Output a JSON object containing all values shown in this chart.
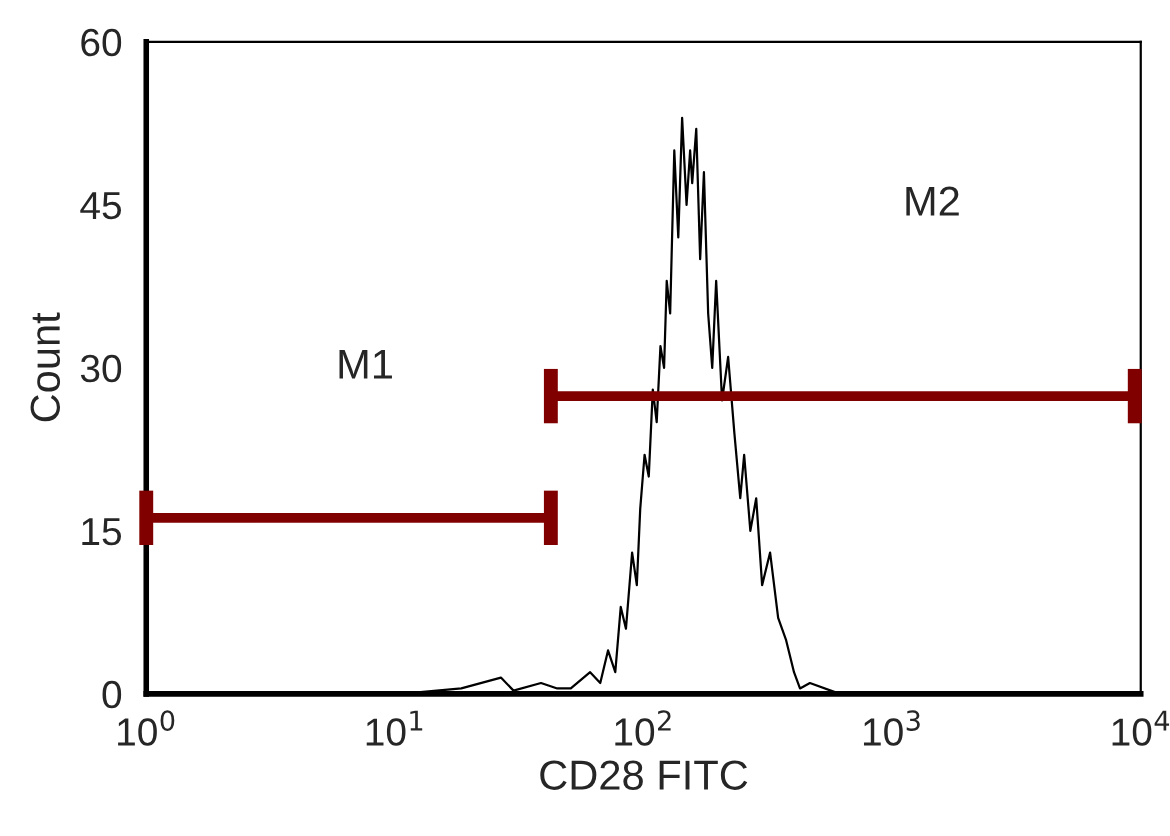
{
  "chart_data": {
    "type": "line",
    "xlabel": "CD28 FITC",
    "ylabel": "Count",
    "log": "x",
    "grid": false,
    "marker": "none",
    "line_style": "solid",
    "xlim": [
      1,
      10000
    ],
    "xticks": [
      {
        "value": 1,
        "label": "10$^{0}$"
      },
      {
        "value": 10,
        "label": "10$^{1}$"
      },
      {
        "value": 100,
        "label": "10$^{2}$"
      },
      {
        "value": 1000,
        "label": "10$^{3}$"
      },
      {
        "value": 10000,
        "label": "10$^{4}$"
      }
    ],
    "ylim": [
      0,
      60
    ],
    "yticks": [
      0,
      15,
      30,
      45,
      60
    ],
    "series": [
      {
        "color": "#000000",
        "x": [
          6.1,
          10.6,
          18.5,
          26.7,
          30,
          38.7,
          45,
          51,
          61,
          67,
          72,
          77,
          81,
          85,
          90,
          94,
          97,
          101,
          105,
          109,
          113,
          117,
          121,
          124,
          128,
          133,
          138,
          143,
          149,
          154,
          157,
          163,
          169,
          175,
          182,
          189,
          196,
          207,
          219,
          232,
          245,
          254,
          269,
          284,
          300,
          323,
          348,
          374,
          403,
          426,
          467,
          616,
          1070,
          9000
        ],
        "values": [
          0,
          0,
          0.5,
          1.5,
          0.3,
          1,
          0.5,
          0.5,
          2,
          1,
          4,
          2,
          8,
          6,
          13,
          10,
          17,
          22,
          20,
          28,
          25,
          32,
          30,
          38,
          35,
          50,
          42,
          53,
          45,
          50,
          47,
          52,
          40,
          48,
          35,
          30,
          38,
          27,
          31,
          24,
          18,
          22,
          15,
          18,
          10,
          13,
          7,
          5,
          2,
          0.5,
          1,
          0,
          0,
          0
        ]
      },
      {
        "color": "#800000",
        "x": [
          1,
          42.4
        ],
        "values": [
          16.2,
          16.2
        ],
        "errors": [
          2.5,
          2.5
        ]
      },
      {
        "color": "#800000",
        "x": [
          42.4,
          9460
        ],
        "values": [
          27.4,
          27.4
        ],
        "errors": [
          2.5,
          2.5
        ]
      }
    ],
    "annotations": [
      "M1",
      "M2"
    ]
  }
}
